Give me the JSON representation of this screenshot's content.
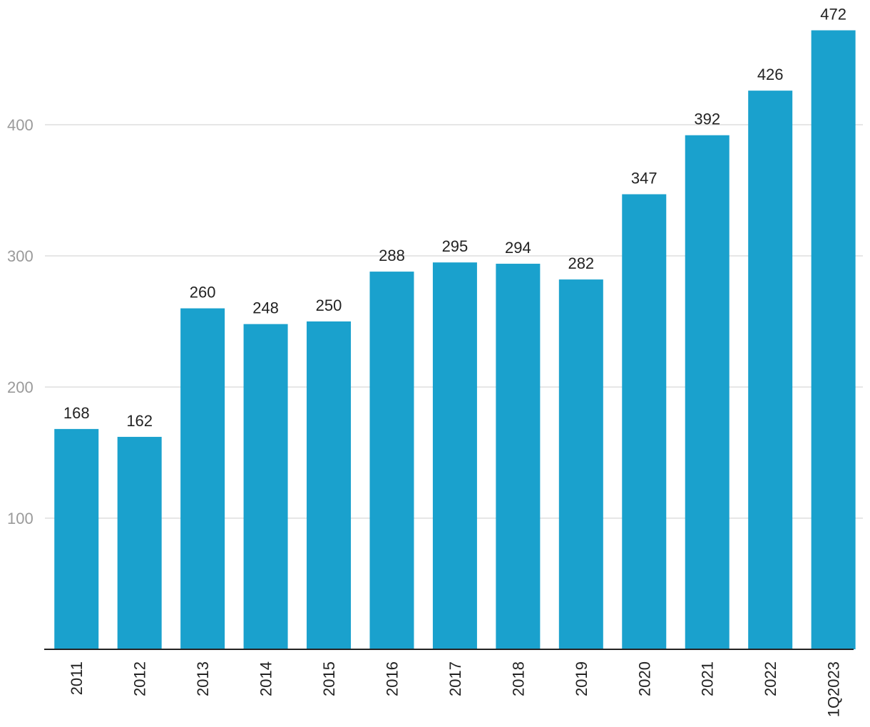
{
  "chart_data": {
    "type": "bar",
    "categories": [
      "2011",
      "2012",
      "2013",
      "2014",
      "2015",
      "2016",
      "2017",
      "2018",
      "2019",
      "2020",
      "2021",
      "2022",
      "1Q2023"
    ],
    "values": [
      168,
      162,
      260,
      248,
      250,
      288,
      295,
      294,
      282,
      347,
      392,
      426,
      472
    ],
    "value_labels": [
      "168",
      "162",
      "260",
      "248",
      "250",
      "288",
      "295",
      "294",
      "282",
      "347",
      "392",
      "426",
      "472"
    ],
    "ylim": [
      0,
      472
    ],
    "y_ticks": [
      100,
      200,
      300,
      400
    ],
    "y_tick_labels": [
      "100",
      "200",
      "300",
      "400"
    ],
    "grid": true,
    "legend": "none",
    "bar_color": "#1aa1cd"
  }
}
